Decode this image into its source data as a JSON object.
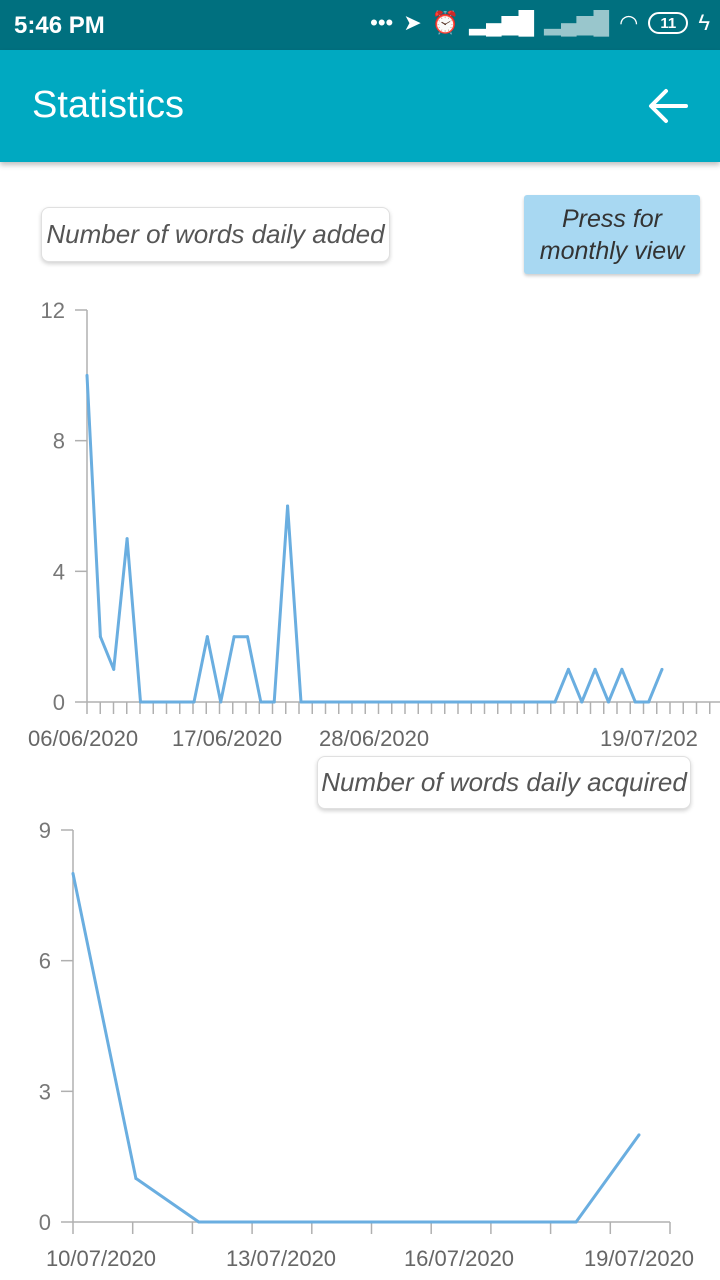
{
  "status_bar": {
    "time": "5:46 PM",
    "battery": "11"
  },
  "app_bar": {
    "title": "Statistics"
  },
  "monthly_button": {
    "line1": "Press for",
    "line2": "monthly view"
  },
  "chart_data": [
    {
      "type": "line",
      "title": "Number of words daily added",
      "ylim": [
        0,
        12
      ],
      "yticks": [
        0,
        4,
        8,
        12
      ],
      "xtick_labels": [
        "06/06/2020",
        "17/06/2020",
        "28/06/2020",
        "19/07/202"
      ],
      "series": [
        {
          "x": [
            0,
            1,
            2,
            3,
            4,
            5,
            6,
            7,
            8,
            9,
            10,
            11,
            12,
            13,
            14,
            15,
            16,
            17,
            18,
            19,
            20,
            21,
            22,
            23,
            24,
            25,
            26,
            27,
            28,
            29,
            30,
            31,
            32,
            33,
            34,
            35,
            36,
            37,
            38,
            39,
            40,
            41,
            42,
            43
          ],
          "values": [
            10,
            2,
            1,
            5,
            0,
            0,
            0,
            0,
            0,
            2,
            0,
            2,
            2,
            0,
            0,
            6,
            0,
            0,
            0,
            0,
            0,
            0,
            0,
            0,
            0,
            0,
            0,
            0,
            0,
            0,
            0,
            0,
            0,
            0,
            0,
            0,
            1,
            0,
            1,
            0,
            1,
            0,
            0,
            1
          ]
        }
      ],
      "color": "#6aaee0"
    },
    {
      "type": "line",
      "title": "Number of words daily acquired",
      "ylim": [
        0,
        9
      ],
      "yticks": [
        0,
        3,
        6,
        9
      ],
      "xtick_labels": [
        "10/07/2020",
        "13/07/2020",
        "16/07/2020",
        "19/07/2020"
      ],
      "series": [
        {
          "x": [
            0.5,
            1.5,
            2.5,
            3.5,
            4.5,
            5.5,
            6.5,
            7.5,
            8.5,
            9.5
          ],
          "values": [
            8,
            1,
            0,
            0,
            0,
            0,
            0,
            0,
            0,
            2
          ]
        }
      ],
      "color": "#6aaee0"
    }
  ]
}
